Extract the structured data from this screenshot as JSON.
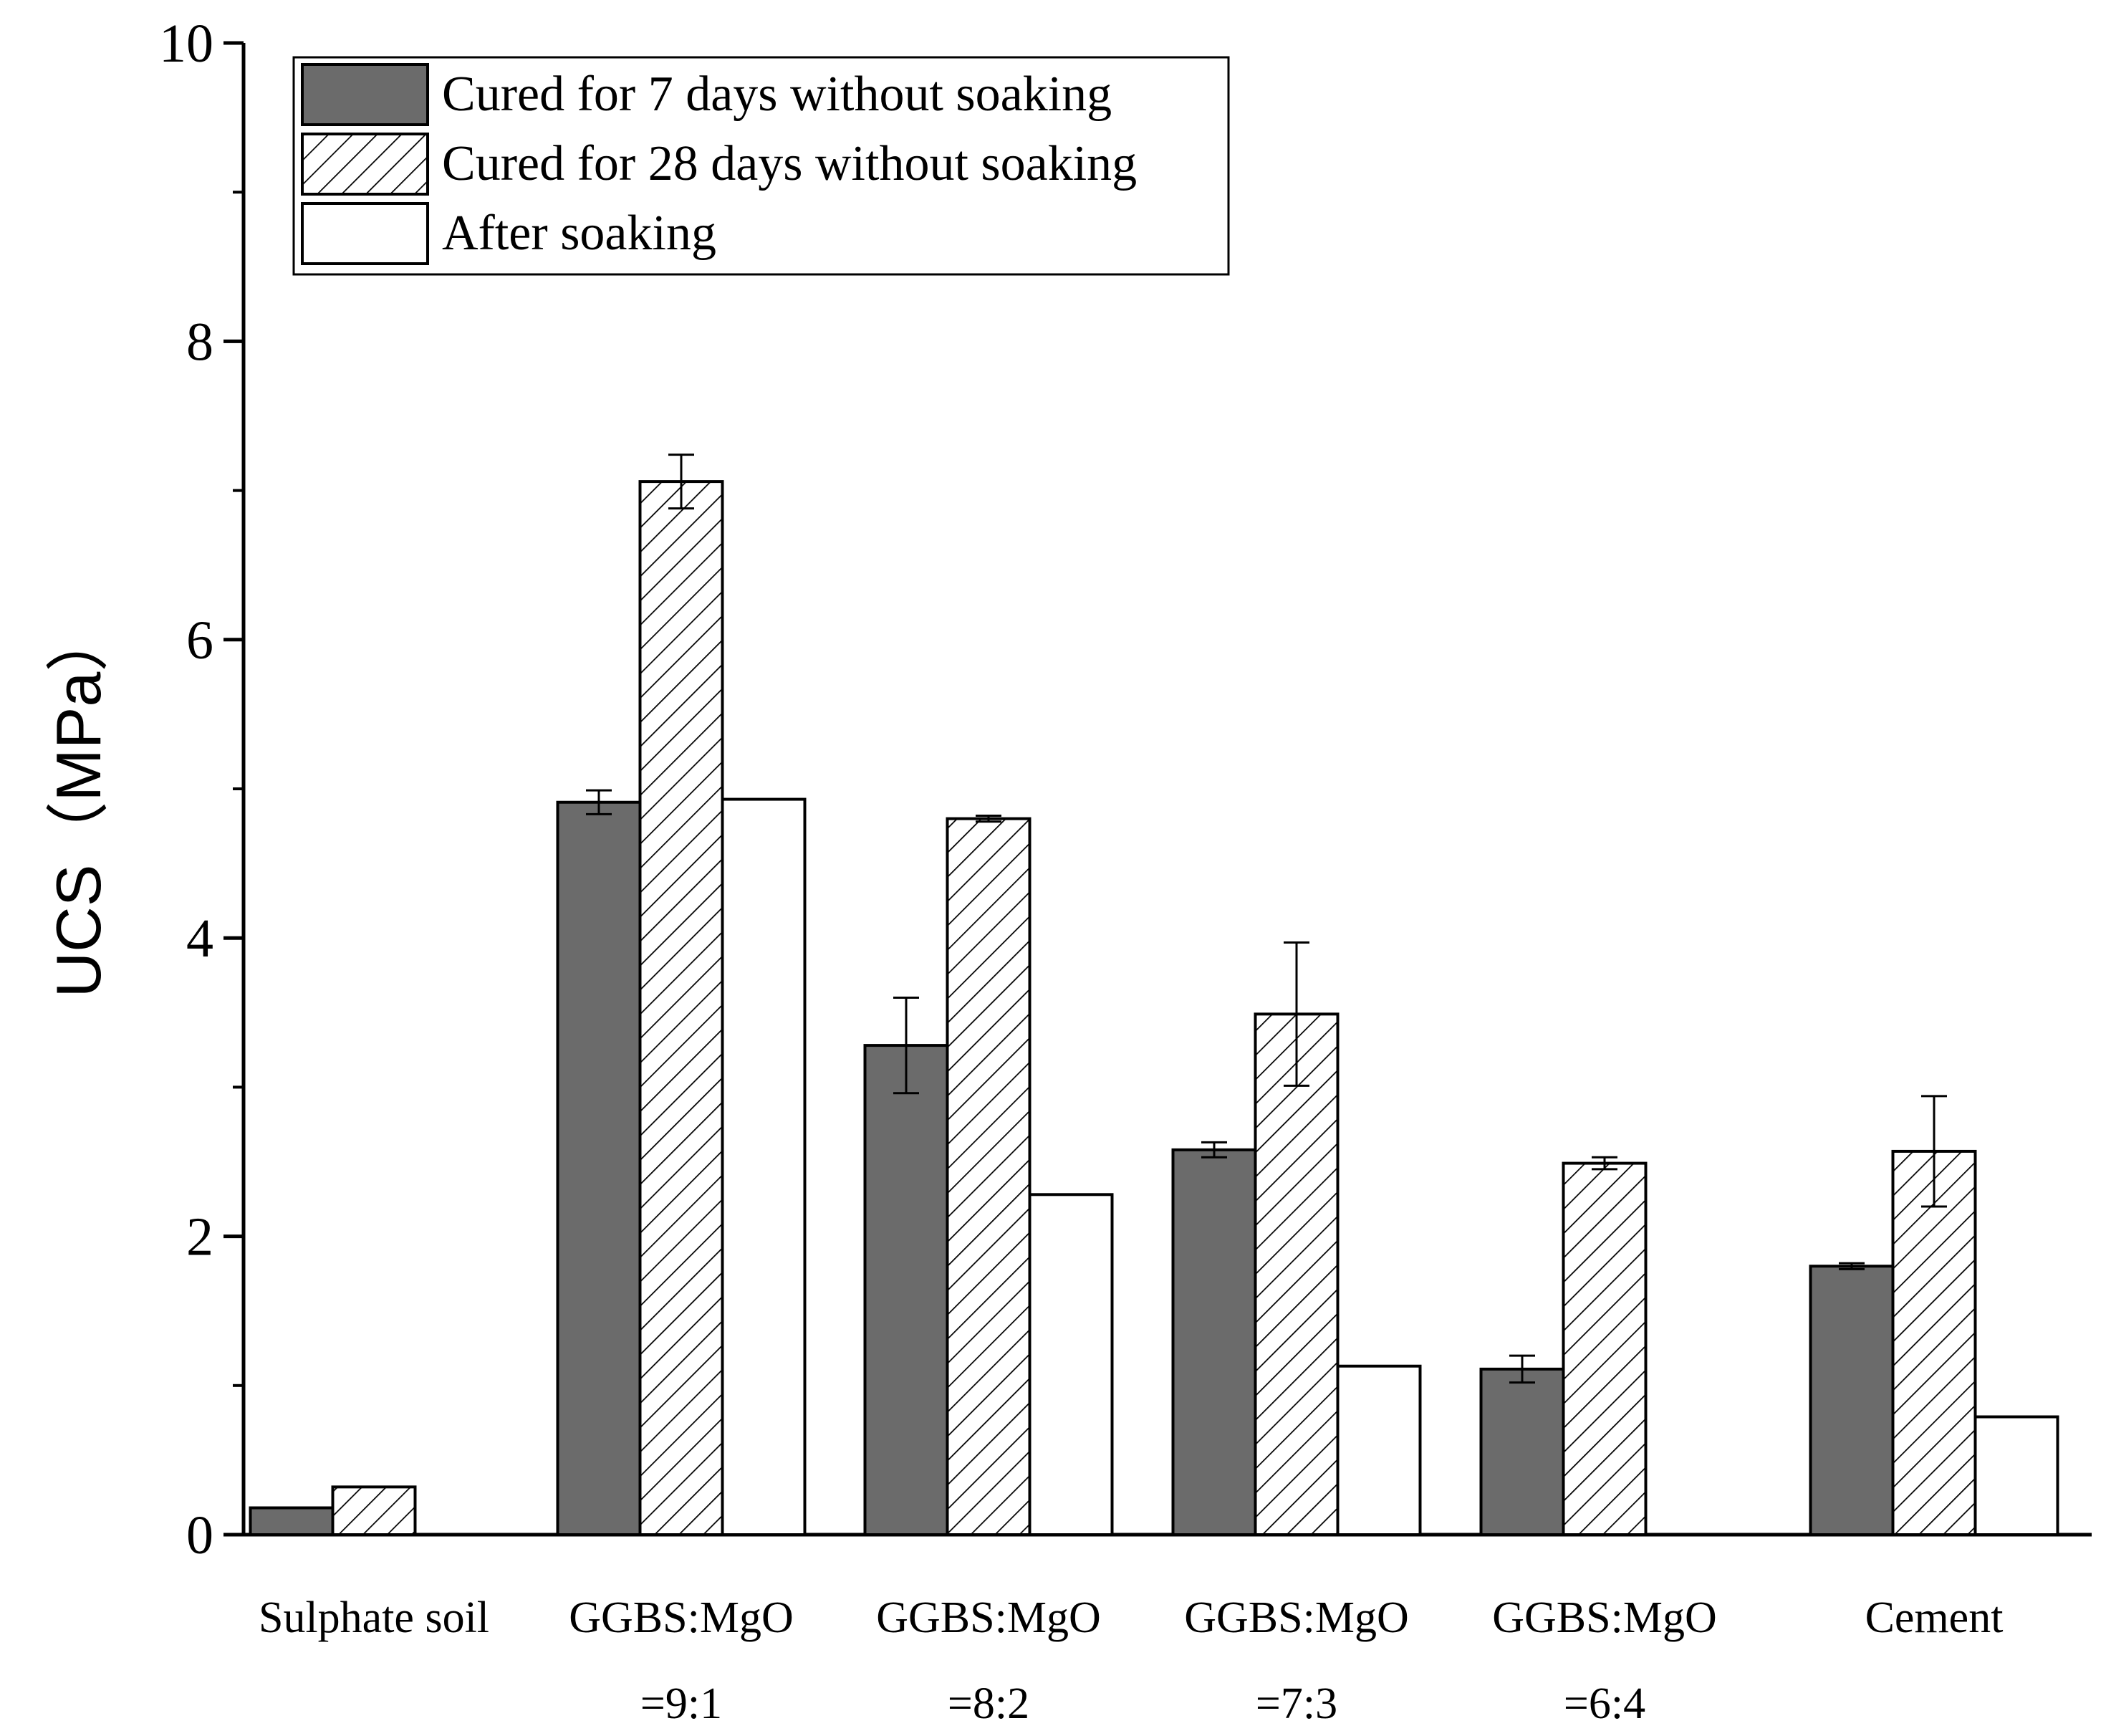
{
  "chart_data": {
    "type": "bar",
    "ylabel": "UCS（MPa）",
    "xlabel": "",
    "ylim": [
      0,
      10
    ],
    "yticks": [
      "0",
      "2",
      "4",
      "6",
      "8",
      "10"
    ],
    "categories": [
      {
        "line1": "Sulphate soil",
        "line2": ""
      },
      {
        "line1": "GGBS:MgO",
        "line2": "=9:1"
      },
      {
        "line1": "GGBS:MgO",
        "line2": "=8:2"
      },
      {
        "line1": "GGBS:MgO",
        "line2": "=7:3"
      },
      {
        "line1": "GGBS:MgO",
        "line2": "=6:4"
      },
      {
        "line1": "Cement",
        "line2": ""
      }
    ],
    "series": [
      {
        "name": "Cured for 7 days without soaking",
        "fill": "gray",
        "color": "#6b6b6b",
        "values": [
          0.18,
          4.91,
          3.28,
          2.58,
          1.11,
          1.8
        ],
        "error": [
          null,
          0.08,
          0.32,
          0.05,
          0.09,
          0.02
        ]
      },
      {
        "name": "Cured for 28 days without soaking",
        "fill": "hatch",
        "color": "#ffffff",
        "values": [
          0.32,
          7.06,
          4.8,
          3.49,
          2.49,
          2.57
        ],
        "error": [
          null,
          0.18,
          0.02,
          0.48,
          0.04,
          0.37
        ]
      },
      {
        "name": "After soaking",
        "fill": "white",
        "color": "#ffffff",
        "values": [
          null,
          4.93,
          2.28,
          1.13,
          null,
          0.79
        ],
        "error": [
          null,
          null,
          null,
          null,
          null,
          null
        ]
      }
    ],
    "legend_position": "top-left",
    "grid": false
  }
}
